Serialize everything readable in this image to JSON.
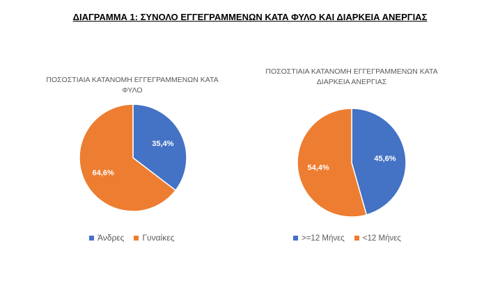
{
  "title": "ΔΙΑΓΡΑΜΜΑ 1: ΣΥΝΟΛΟ ΕΓΓΕΓΡΑΜΜΕΝΩΝ ΚΑΤΑ ΦΥΛΟ ΚΑΙ ΔΙΑΡΚΕΙΑ ΑΝΕΡΓΙΑΣ",
  "chart_data": [
    {
      "type": "pie",
      "title": "ΠΟΣΟΣΤΙΑΙΑ ΚΑΤΑΝΟΜΗ ΕΓΓΕΓΡΑΜΜΕΝΩΝ ΚΑΤΑ ΦΥΛΟ",
      "categories": [
        "Άνδρες",
        "Γυναίκες"
      ],
      "values": [
        35.4,
        64.6
      ],
      "labels": [
        "35,4%",
        "64,6%"
      ],
      "colors": [
        "#4472C4",
        "#ED7D31"
      ],
      "legend": "bottom"
    },
    {
      "type": "pie",
      "title": "ΠΟΣΟΣΤΙΑΙΑ ΚΑΤΑΝΟΜΗ ΕΓΓΕΓΡΑΜΜΕΝΩΝ ΚΑΤΑ ΔΙΑΡΚΕΙΑ ΑΝΕΡΓΙΑΣ",
      "categories": [
        ">=12 Μήνες",
        "<12 Μήνες"
      ],
      "values": [
        45.6,
        54.4
      ],
      "labels": [
        "45,6%",
        "54,4%"
      ],
      "colors": [
        "#4472C4",
        "#ED7D31"
      ],
      "legend": "bottom"
    }
  ]
}
